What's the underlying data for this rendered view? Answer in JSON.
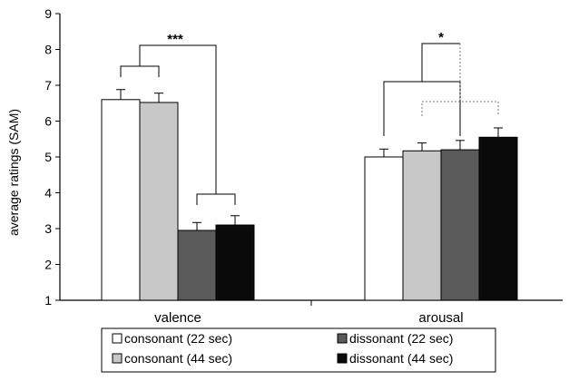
{
  "chart_data": {
    "type": "bar",
    "ylabel": "average ratings (SAM)",
    "ylim": [
      1,
      9
    ],
    "yticks": [
      1,
      2,
      3,
      4,
      5,
      6,
      7,
      8,
      9
    ],
    "categories": [
      "valence",
      "arousal"
    ],
    "series": [
      {
        "name": "consonant (22 sec)",
        "color": "#ffffff",
        "values": [
          6.6,
          5.0
        ],
        "errors": [
          0.28,
          0.22
        ]
      },
      {
        "name": "consonant (44 sec)",
        "color": "#c8c8c8",
        "values": [
          6.52,
          5.17
        ],
        "errors": [
          0.26,
          0.22
        ]
      },
      {
        "name": "dissonant (22 sec)",
        "color": "#5a5a5a",
        "values": [
          2.95,
          5.2
        ],
        "errors": [
          0.22,
          0.26
        ]
      },
      {
        "name": "dissonant (44 sec)",
        "color": "#0a0a0a",
        "values": [
          3.1,
          5.55
        ],
        "errors": [
          0.26,
          0.26
        ]
      }
    ],
    "significance": [
      {
        "category": "valence",
        "label": "***"
      },
      {
        "category": "arousal",
        "label": "*"
      }
    ],
    "legend_position": "bottom",
    "grid": false
  }
}
